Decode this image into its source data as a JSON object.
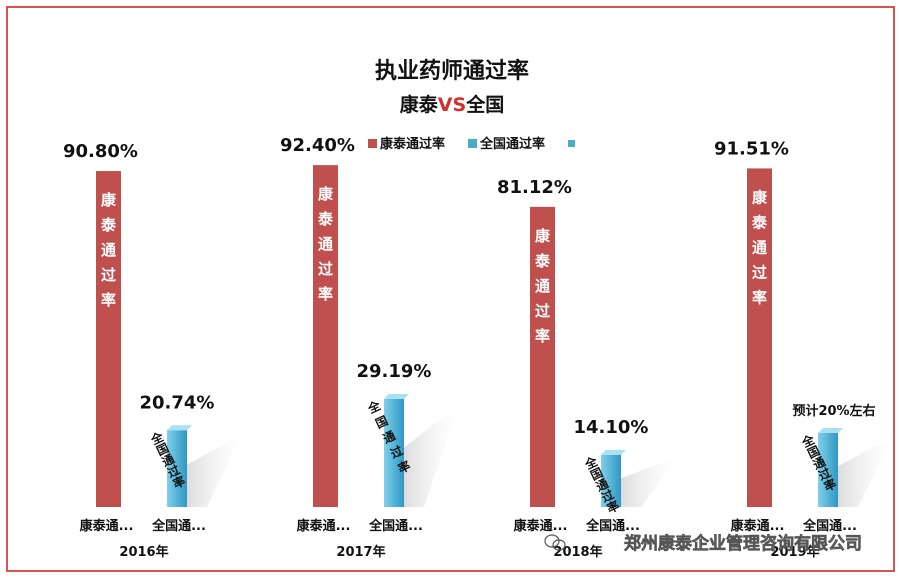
{
  "chart_data": {
    "type": "bar",
    "title": "执业药师通过率",
    "subtitle_prefix": "康泰",
    "subtitle_vs": "VS",
    "subtitle_suffix": "全国",
    "categories": [
      "2016年",
      "2017年",
      "2018年",
      "2019年"
    ],
    "series": [
      {
        "name": "康泰通过率",
        "short_label": "康泰通...",
        "bar_text": "康泰通过率",
        "values": [
          90.8,
          92.4,
          81.12,
          91.51
        ],
        "labels": [
          "90.80%",
          "92.40%",
          "81.12%",
          "91.51%"
        ],
        "color": "#c0504d"
      },
      {
        "name": "全国通过率",
        "short_label": "全国通...",
        "bar_text": "全国通过率",
        "values": [
          20.74,
          29.19,
          14.1,
          20
        ],
        "labels": [
          "20.74%",
          "29.19%",
          "14.10%",
          "预计20%左右"
        ],
        "color": "#4bacc6"
      }
    ],
    "legend_position": "top-center",
    "ylim": [
      0,
      100
    ],
    "grid": false
  },
  "watermark": "郑州康泰企业管理咨询有限公司"
}
